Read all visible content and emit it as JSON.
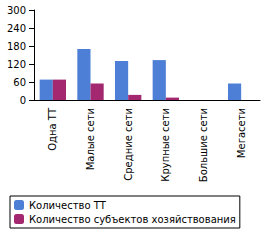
{
  "chart_data": {
    "type": "bar",
    "categories": [
      "Одна ТТ",
      "Малые сети",
      "Средние сети",
      "Крупные сети",
      "Большие сети",
      "Мегасети"
    ],
    "series": [
      {
        "name": "Количество ТТ",
        "color": "#4d7fd6",
        "values": [
          68,
          170,
          130,
          133,
          0,
          55
        ]
      },
      {
        "name": "Количество субъектов хозяйствования",
        "color": "#a3286f",
        "values": [
          68,
          55,
          17,
          8,
          0,
          0
        ]
      }
    ],
    "ylim": [
      0,
      300
    ],
    "yticks": [
      0,
      60,
      120,
      180,
      240,
      300
    ],
    "grid": false,
    "legend": "bottom"
  }
}
